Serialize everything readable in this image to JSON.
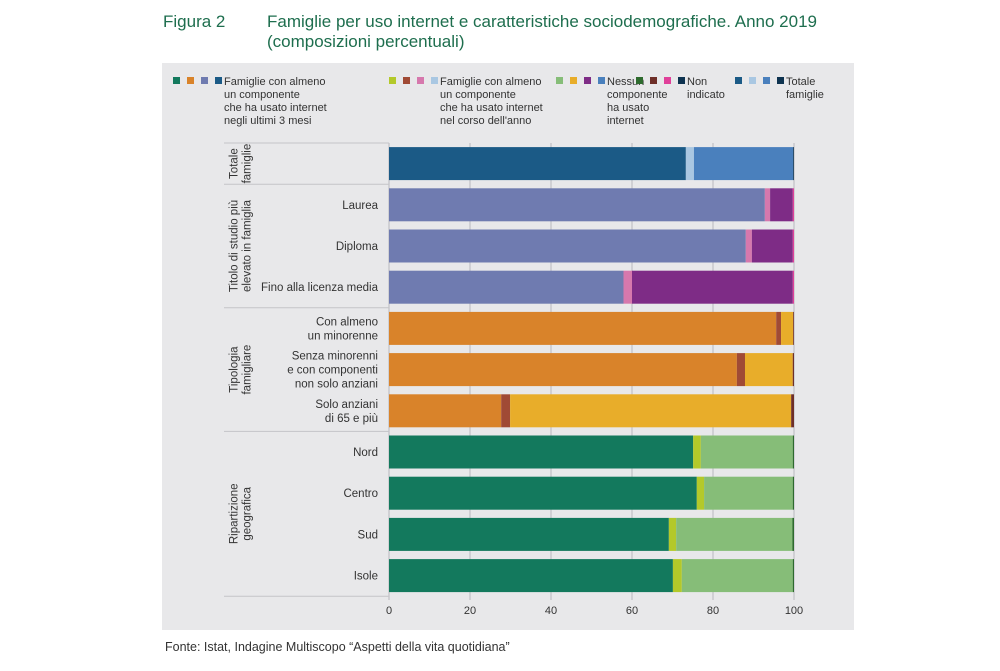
{
  "header": {
    "figure_label": "Figura 2",
    "title_line1": "Famiglie per uso internet e caratteristiche sociodemografiche. Anno 2019",
    "title_line2": "(composizioni percentuali)"
  },
  "footer": {
    "source": "Fonte: Istat, Indagine Multiscopo “Aspetti della vita quotidiana”"
  },
  "chart_data": {
    "type": "bar",
    "orientation": "horizontal",
    "stacked": true,
    "xlim": [
      0,
      100
    ],
    "xticks": [
      "0",
      "20",
      "40",
      "60",
      "80",
      "100"
    ],
    "grid": true,
    "legend_position": "top",
    "legend": [
      {
        "label": "Famiglie con almeno\nun componente\nche ha usato internet\nnegli ultimi 3 mesi",
        "colors": [
          "#13795d",
          "#d9832a",
          "#6f7bb0",
          "#1b5a86"
        ]
      },
      {
        "label": "Famiglie con almeno\nun componente\nche ha usato internet\nnel corso dell'anno",
        "colors": [
          "#b3c92a",
          "#a04a35",
          "#d678ad",
          "#a9c7e2"
        ]
      },
      {
        "label": "Nessun\ncomponente\nha usato\ninternet",
        "colors": [
          "#86bd78",
          "#e8ad2a",
          "#7e2c86",
          "#4a80bd"
        ]
      },
      {
        "label": "Non\nindicato",
        "colors": [
          "#2e6b2e",
          "#6e2f28",
          "#e0409a",
          "#0e3350"
        ]
      },
      {
        "label": "Totale\nfamiglie",
        "colors": [
          "#1b5a86",
          "#a9c7e2",
          "#4a80bd",
          "#0e3350"
        ]
      }
    ],
    "groups": [
      {
        "label": "Totale famiglie",
        "label_lines": [
          "Totale",
          "famiglie"
        ],
        "palette": [
          "#1b5a86",
          "#a9c7e2",
          "#4a80bd",
          "#0e3350"
        ],
        "rows": [
          {
            "label_lines": [
              ""
            ],
            "values": [
              73.3,
              2.0,
              24.5,
              0.2
            ]
          }
        ]
      },
      {
        "label": "Titolo di studio più elevato in famiglia",
        "label_lines": [
          "Titolo di studio più",
          "elevato in famiglia"
        ],
        "palette": [
          "#6f7bb0",
          "#d678ad",
          "#7e2c86",
          "#e0409a"
        ],
        "rows": [
          {
            "label_lines": [
              "Laurea"
            ],
            "values": [
              92.8,
              1.3,
              5.6,
              0.3
            ]
          },
          {
            "label_lines": [
              "Diploma"
            ],
            "values": [
              88.1,
              1.5,
              10.1,
              0.3
            ]
          },
          {
            "label_lines": [
              "Fino alla licenza media"
            ],
            "values": [
              57.9,
              2.1,
              39.7,
              0.3
            ]
          }
        ]
      },
      {
        "label": "Tipologia famigliare",
        "label_lines": [
          "Tipologia",
          "famigliare"
        ],
        "palette": [
          "#d9832a",
          "#a04a35",
          "#e8ad2a",
          "#6e2f28"
        ],
        "rows": [
          {
            "label_lines": [
              "Con almeno",
              "un minorenne"
            ],
            "values": [
              95.6,
              1.2,
              3.0,
              0.2
            ]
          },
          {
            "label_lines": [
              "Senza minorenni",
              "e con componenti",
              "non solo anziani"
            ],
            "values": [
              85.9,
              2.0,
              11.8,
              0.3
            ]
          },
          {
            "label_lines": [
              "Solo anziani",
              "di 65 e più"
            ],
            "values": [
              27.7,
              2.2,
              69.4,
              0.7
            ]
          }
        ]
      },
      {
        "label": "Ripartizione geografica",
        "label_lines": [
          "Ripartizione",
          "geografica"
        ],
        "palette": [
          "#13795d",
          "#b3c92a",
          "#86bd78",
          "#2e6b2e"
        ],
        "rows": [
          {
            "label_lines": [
              "Nord"
            ],
            "values": [
              75.1,
              1.9,
              22.7,
              0.3
            ]
          },
          {
            "label_lines": [
              "Centro"
            ],
            "values": [
              76.0,
              1.8,
              21.9,
              0.3
            ]
          },
          {
            "label_lines": [
              "Sud"
            ],
            "values": [
              69.1,
              1.8,
              28.7,
              0.4
            ]
          },
          {
            "label_lines": [
              "Isole"
            ],
            "values": [
              70.1,
              2.2,
              27.4,
              0.3
            ]
          }
        ]
      }
    ]
  }
}
